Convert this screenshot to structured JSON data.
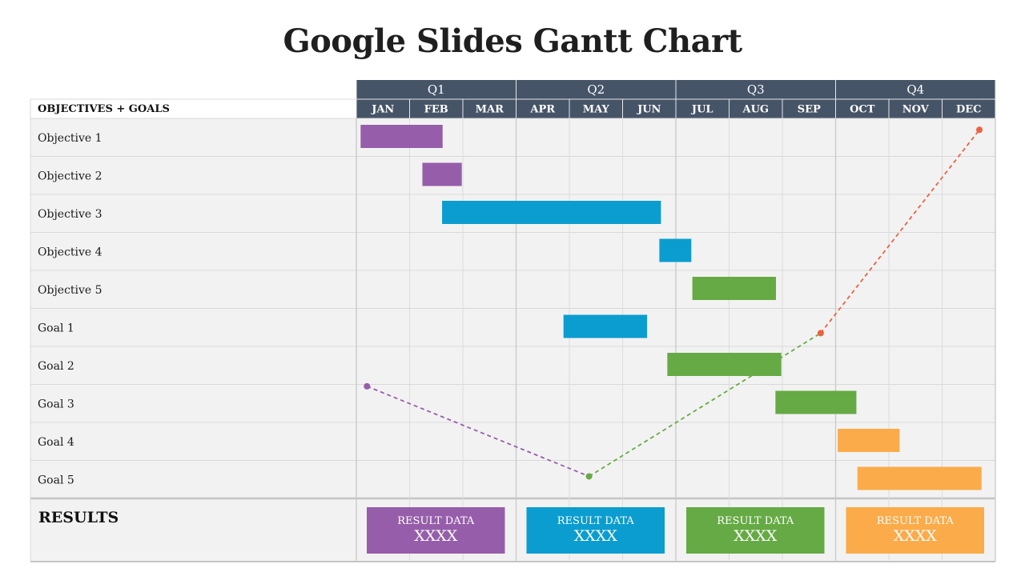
{
  "title": "Google Slides Gantt Chart",
  "colors": {
    "header": "#465468",
    "row_bg": "#f2f2f2",
    "grid": "#d9d9d9",
    "purple": "#965eaa",
    "blue": "#0b9dcf",
    "green": "#65aa44",
    "orange": "#fbab4a",
    "red_line": "#ec6240"
  },
  "table": {
    "header_label": "OBJECTIVES + GOALS",
    "results_label": "RESULTS"
  },
  "chart_data": {
    "type": "gantt",
    "quarters": [
      "Q1",
      "Q2",
      "Q3",
      "Q4"
    ],
    "months": [
      "JAN",
      "FEB",
      "MAR",
      "APR",
      "MAY",
      "JUN",
      "JUL",
      "AUG",
      "SEP",
      "OCT",
      "NOV",
      "DEC"
    ],
    "x_unit": "months from start of JAN",
    "tasks": [
      {
        "label": "Objective 1",
        "start": 0.08,
        "end": 1.62,
        "color": "purple"
      },
      {
        "label": "Objective 2",
        "start": 1.24,
        "end": 1.98,
        "color": "purple"
      },
      {
        "label": "Objective 3",
        "start": 1.61,
        "end": 5.72,
        "color": "blue"
      },
      {
        "label": "Objective 4",
        "start": 5.69,
        "end": 6.29,
        "color": "blue"
      },
      {
        "label": "Objective 5",
        "start": 6.31,
        "end": 7.88,
        "color": "green"
      },
      {
        "label": "Goal 1",
        "start": 3.89,
        "end": 5.46,
        "color": "blue"
      },
      {
        "label": "Goal 2",
        "start": 5.84,
        "end": 7.98,
        "color": "green"
      },
      {
        "label": "Goal 3",
        "start": 7.87,
        "end": 9.39,
        "color": "green"
      },
      {
        "label": "Goal 4",
        "start": 9.04,
        "end": 10.2,
        "color": "orange"
      },
      {
        "label": "Goal 5",
        "start": 9.41,
        "end": 11.74,
        "color": "orange"
      }
    ],
    "trend_lines": [
      {
        "color": "purple",
        "from": {
          "x": 0.2,
          "row": 7.05
        },
        "to": {
          "x": 4.37,
          "row": 9.42
        }
      },
      {
        "color": "green",
        "from": {
          "x": 4.37,
          "row": 9.42
        },
        "to": {
          "x": 8.72,
          "row": 5.65
        }
      },
      {
        "color": "red_line",
        "from": {
          "x": 8.72,
          "row": 5.65
        },
        "to": {
          "x": 11.7,
          "row": 0.3
        }
      }
    ],
    "results": [
      {
        "label": "RESULT DATA",
        "value": "XXXX",
        "color": "purple"
      },
      {
        "label": "RESULT DATA",
        "value": "XXXX",
        "color": "blue"
      },
      {
        "label": "RESULT DATA",
        "value": "XXXX",
        "color": "green"
      },
      {
        "label": "RESULT DATA",
        "value": "XXXX",
        "color": "orange"
      }
    ]
  }
}
